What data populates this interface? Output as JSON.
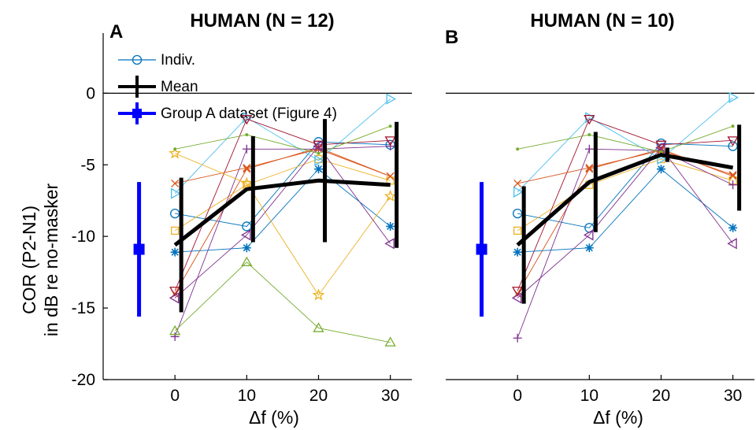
{
  "chart_data": [
    {
      "type": "line",
      "panel_letter": "A",
      "title": "HUMAN (N = 12)",
      "xlabel": "Δf (%)",
      "ylabel": [
        "COR (P2-N1)",
        "in dB re no-masker"
      ],
      "x": [
        0,
        10,
        20,
        30
      ],
      "xticks": [
        "0",
        "10",
        "20",
        "30"
      ],
      "yticks": [
        "0",
        "-5",
        "-10",
        "-15",
        "-20"
      ],
      "xlim": [
        -10,
        33
      ],
      "ylim": [
        -20,
        4.2
      ],
      "grid": false,
      "legend": {
        "placement": "top-left",
        "entries": [
          {
            "label": "Indiv.",
            "color": "#0072bd",
            "marker": "circle"
          },
          {
            "label": "Mean",
            "color": "#000000",
            "marker": "errorbar"
          },
          {
            "label": "Group A dataset (Figure 4)",
            "color": "#0000ff",
            "marker": "square-errorbar"
          }
        ]
      },
      "reference_line_y": 0,
      "mean": {
        "values": [
          -10.6,
          -6.7,
          -6.1,
          -6.4
        ],
        "errors": [
          4.7,
          3.7,
          4.3,
          4.4
        ],
        "color": "#000000"
      },
      "group_a": {
        "x": -5,
        "value": -10.9,
        "error": 4.7,
        "color": "#0000ff"
      },
      "individuals": [
        {
          "values": [
            -8.4,
            -9.3,
            -3.4,
            -3.6
          ],
          "color": "#0072bd",
          "marker": "circle"
        },
        {
          "values": [
            -14.0,
            -5.3,
            -3.8,
            -5.8
          ],
          "color": "#d95319",
          "marker": "x"
        },
        {
          "values": [
            -9.6,
            -6.4,
            -4.6,
            -6.1
          ],
          "color": "#edb120",
          "marker": "square"
        },
        {
          "values": [
            -17.0,
            -3.9,
            -3.9,
            -3.7
          ],
          "color": "#7e2f8e",
          "marker": "plus"
        },
        {
          "values": [
            -16.6,
            -11.8,
            -16.4,
            -17.4
          ],
          "color": "#77ac30",
          "marker": "triangle-up"
        },
        {
          "values": [
            -7.0,
            -1.7,
            -4.7,
            -0.4
          ],
          "color": "#4dbeee",
          "marker": "triangle-right"
        },
        {
          "values": [
            -13.8,
            -1.8,
            -3.6,
            -3.3
          ],
          "color": "#a2142f",
          "marker": "triangle-down"
        },
        {
          "values": [
            -11.1,
            -10.8,
            -5.3,
            -9.3
          ],
          "color": "#0072bd",
          "marker": "asterisk"
        },
        {
          "values": [
            -6.3,
            -5.2,
            -3.9,
            -5.8
          ],
          "color": "#d95319",
          "marker": "x"
        },
        {
          "values": [
            -4.2,
            -6.3,
            -14.1,
            -7.2
          ],
          "color": "#edb120",
          "marker": "star"
        },
        {
          "values": [
            -14.3,
            -9.9,
            -3.7,
            -10.5
          ],
          "color": "#7e2f8e",
          "marker": "triangle-left"
        },
        {
          "values": [
            -3.9,
            -2.9,
            -4.2,
            -2.3
          ],
          "color": "#77ac30",
          "marker": "dot"
        }
      ]
    },
    {
      "type": "line",
      "panel_letter": "B",
      "title": "HUMAN (N = 10)",
      "xlabel": "Δf (%)",
      "ylabel": [],
      "x": [
        0,
        10,
        20,
        30
      ],
      "xticks": [
        "0",
        "10",
        "20",
        "30"
      ],
      "yticks": [],
      "xlim": [
        -10,
        33
      ],
      "ylim": [
        -20,
        4.2
      ],
      "grid": false,
      "reference_line_y": 0,
      "mean": {
        "values": [
          -10.6,
          -6.2,
          -4.3,
          -5.2
        ],
        "errors": [
          4.1,
          3.5,
          0.5,
          3.0
        ],
        "color": "#000000"
      },
      "group_a": {
        "x": -5,
        "value": -10.9,
        "error": 4.7,
        "color": "#0000ff"
      },
      "individuals": [
        {
          "values": [
            -8.4,
            -9.4,
            -3.5,
            -3.7
          ],
          "color": "#0072bd",
          "marker": "circle"
        },
        {
          "values": [
            -14.0,
            -5.3,
            -3.9,
            -5.8
          ],
          "color": "#d95319",
          "marker": "x"
        },
        {
          "values": [
            -9.6,
            -6.4,
            -4.6,
            -6.1
          ],
          "color": "#edb120",
          "marker": "square"
        },
        {
          "values": [
            -17.1,
            -3.9,
            -4.0,
            -6.4
          ],
          "color": "#7e2f8e",
          "marker": "plus"
        },
        {
          "values": [
            -6.9,
            -1.7,
            -4.6,
            -0.3
          ],
          "color": "#4dbeee",
          "marker": "triangle-right"
        },
        {
          "values": [
            -13.8,
            -1.8,
            -3.6,
            -3.3
          ],
          "color": "#a2142f",
          "marker": "triangle-down"
        },
        {
          "values": [
            -11.1,
            -10.8,
            -5.3,
            -9.4
          ],
          "color": "#0072bd",
          "marker": "asterisk"
        },
        {
          "values": [
            -6.3,
            -5.2,
            -4.0,
            -5.7
          ],
          "color": "#d95319",
          "marker": "x"
        },
        {
          "values": [
            -14.3,
            -9.9,
            -3.8,
            -10.5
          ],
          "color": "#7e2f8e",
          "marker": "triangle-left"
        },
        {
          "values": [
            -3.9,
            -2.9,
            -4.1,
            -2.3
          ],
          "color": "#77ac30",
          "marker": "dot"
        }
      ]
    }
  ]
}
